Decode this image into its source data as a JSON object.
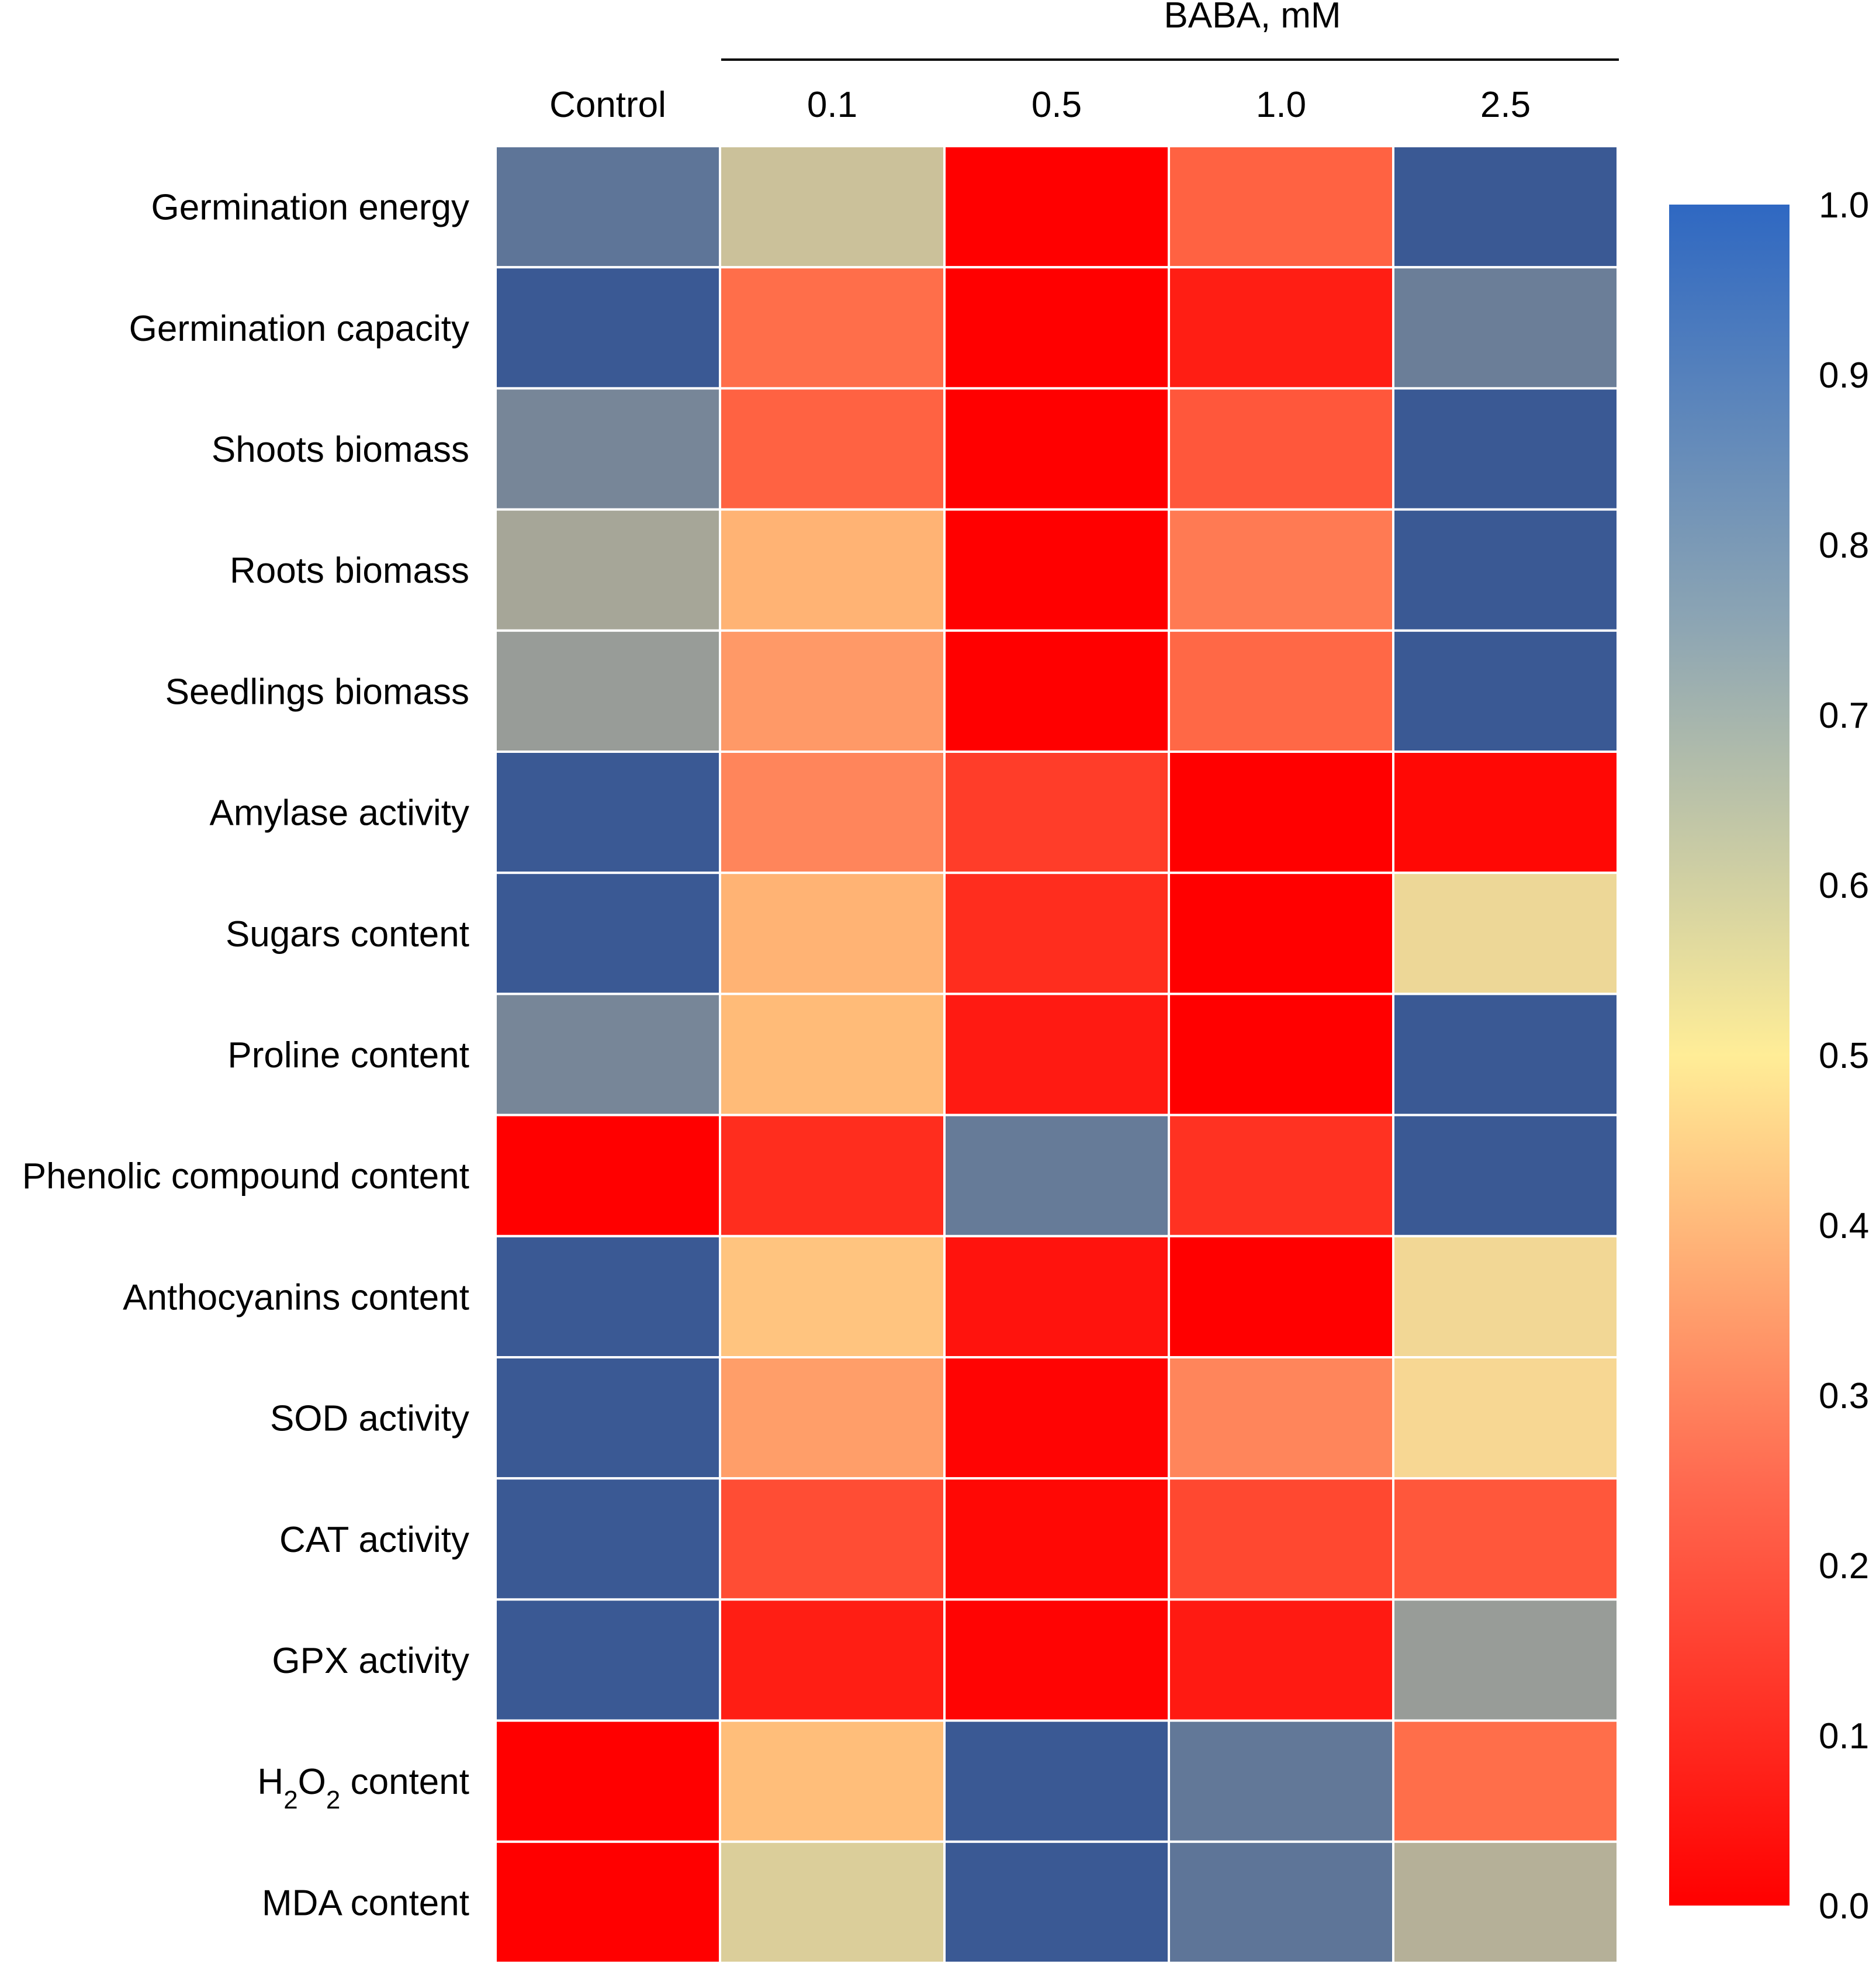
{
  "chart_data": {
    "type": "heatmap",
    "title": "",
    "column_group_label": "BABA, mM",
    "columns": [
      "Control",
      "0.1",
      "0.5",
      "1.0",
      "2.5"
    ],
    "grouped_columns": [
      "0.1",
      "0.5",
      "1.0",
      "2.5"
    ],
    "rows": [
      {
        "label": "Germination energy",
        "values": [
          0.88,
          0.65,
          0.0,
          0.22,
          0.97
        ]
      },
      {
        "label": "Germination capacity",
        "values": [
          0.97,
          0.24,
          0.0,
          0.08,
          0.85
        ]
      },
      {
        "label": "Shoots biomass",
        "values": [
          0.82,
          0.22,
          0.0,
          0.2,
          0.97
        ]
      },
      {
        "label": "Roots biomass",
        "values": [
          0.72,
          0.38,
          0.0,
          0.26,
          0.97
        ]
      },
      {
        "label": "Seedlings biomass",
        "values": [
          0.75,
          0.32,
          0.0,
          0.23,
          0.97
        ]
      },
      {
        "label": "Amylase activity",
        "values": [
          0.97,
          0.28,
          0.15,
          0.0,
          0.02
        ]
      },
      {
        "label": "Sugars content",
        "values": [
          0.97,
          0.38,
          0.12,
          0.0,
          0.57
        ]
      },
      {
        "label": "Proline content",
        "values": [
          0.82,
          0.4,
          0.07,
          0.0,
          0.97
        ]
      },
      {
        "label": "Phenolic compound content",
        "values": [
          0.0,
          0.12,
          0.86,
          0.13,
          0.97
        ]
      },
      {
        "label": "Anthocyanins content",
        "values": [
          0.97,
          0.43,
          0.05,
          0.0,
          0.55
        ]
      },
      {
        "label": "SOD activity",
        "values": [
          0.97,
          0.33,
          0.01,
          0.28,
          0.53
        ]
      },
      {
        "label": "CAT activity",
        "values": [
          0.97,
          0.18,
          0.02,
          0.17,
          0.2
        ]
      },
      {
        "label": "GPX activity",
        "values": [
          0.97,
          0.08,
          0.01,
          0.07,
          0.75
        ]
      },
      {
        "label_parts": [
          {
            "text": "H"
          },
          {
            "text": "2",
            "sub": true
          },
          {
            "text": "O"
          },
          {
            "text": "2",
            "sub": true
          },
          {
            "text": " content"
          }
        ],
        "values": [
          0.0,
          0.41,
          0.97,
          0.87,
          0.24
        ]
      },
      {
        "label": "MDA content",
        "values": [
          0.0,
          0.62,
          0.97,
          0.88,
          0.69
        ]
      }
    ],
    "colorbar": {
      "range": [
        0.0,
        1.0
      ],
      "ticks": [
        "0.0",
        "0.1",
        "0.2",
        "0.3",
        "0.4",
        "0.5",
        "0.6",
        "0.7",
        "0.8",
        "0.9",
        "1.0"
      ],
      "stops": [
        {
          "value": 0.0,
          "color": "#ff0000"
        },
        {
          "value": 0.25,
          "color": "#ff6a50"
        },
        {
          "value": 0.5,
          "color": "#ffed97"
        },
        {
          "value": 0.75,
          "color": "#8ea6b3"
        },
        {
          "value": 1.0,
          "color": "#2f68c2"
        }
      ]
    },
    "cell_colormap": [
      {
        "value": 0.0,
        "color": "#ff0000"
      },
      {
        "value": 0.12,
        "color": "#ff2d1e"
      },
      {
        "value": 0.22,
        "color": "#ff6242"
      },
      {
        "value": 0.3,
        "color": "#ff9163"
      },
      {
        "value": 0.4,
        "color": "#ffbb78"
      },
      {
        "value": 0.5,
        "color": "#fed88f"
      },
      {
        "value": 0.6,
        "color": "#e6d69b"
      },
      {
        "value": 0.7,
        "color": "#b0ac98"
      },
      {
        "value": 0.8,
        "color": "#7f8c98"
      },
      {
        "value": 0.9,
        "color": "#566f98"
      },
      {
        "value": 1.0,
        "color": "#2e4f92"
      }
    ]
  }
}
